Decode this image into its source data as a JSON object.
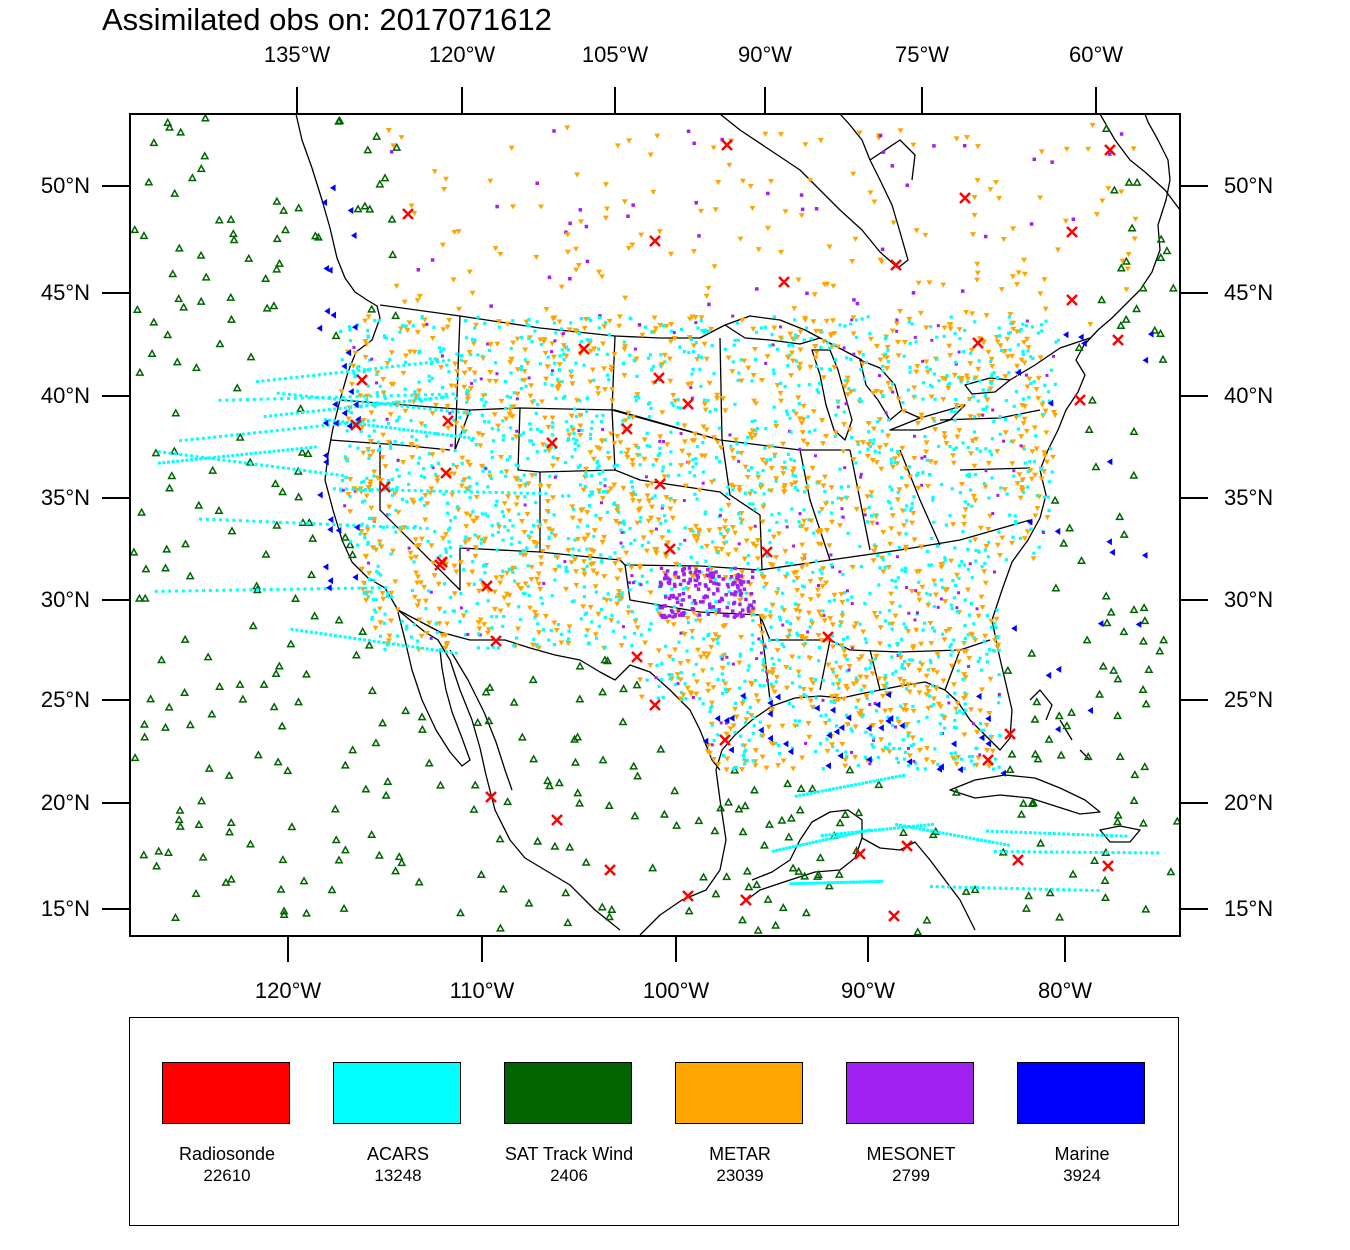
{
  "title": "Assimilated obs on: 2017071612",
  "axes": {
    "top_lon_labels": [
      "135°W",
      "120°W",
      "105°W",
      "90°W",
      "75°W",
      "60°W"
    ],
    "bottom_lon_labels": [
      "120°W",
      "110°W",
      "100°W",
      "90°W",
      "80°W"
    ],
    "lat_labels": [
      "50°N",
      "45°N",
      "40°N",
      "35°N",
      "30°N",
      "25°N",
      "20°N",
      "15°N"
    ]
  },
  "legend": [
    {
      "name": "Radiosonde",
      "count": "22610",
      "color": "#ff0000",
      "marker": "x-cross"
    },
    {
      "name": "ACARS",
      "count": "13248",
      "color": "#00ffff",
      "marker": "dot"
    },
    {
      "name": "SAT Track Wind",
      "count": "2406",
      "color": "#006400",
      "marker": "triangle-up-outline"
    },
    {
      "name": "METAR",
      "count": "23039",
      "color": "#ffa500",
      "marker": "triangle-down"
    },
    {
      "name": "MESONET",
      "count": "2799",
      "color": "#a020f0",
      "marker": "diamond"
    },
    {
      "name": "Marine",
      "count": "3924",
      "color": "#0000ff",
      "marker": "triangle-left"
    }
  ],
  "map": {
    "projection": "lambert-conformal",
    "region": "CONUS",
    "lat_range": [
      14,
      54
    ],
    "lon_range": [
      -128,
      -55
    ],
    "basemap": [
      "coastlines",
      "country-borders",
      "us-state-borders"
    ]
  }
}
